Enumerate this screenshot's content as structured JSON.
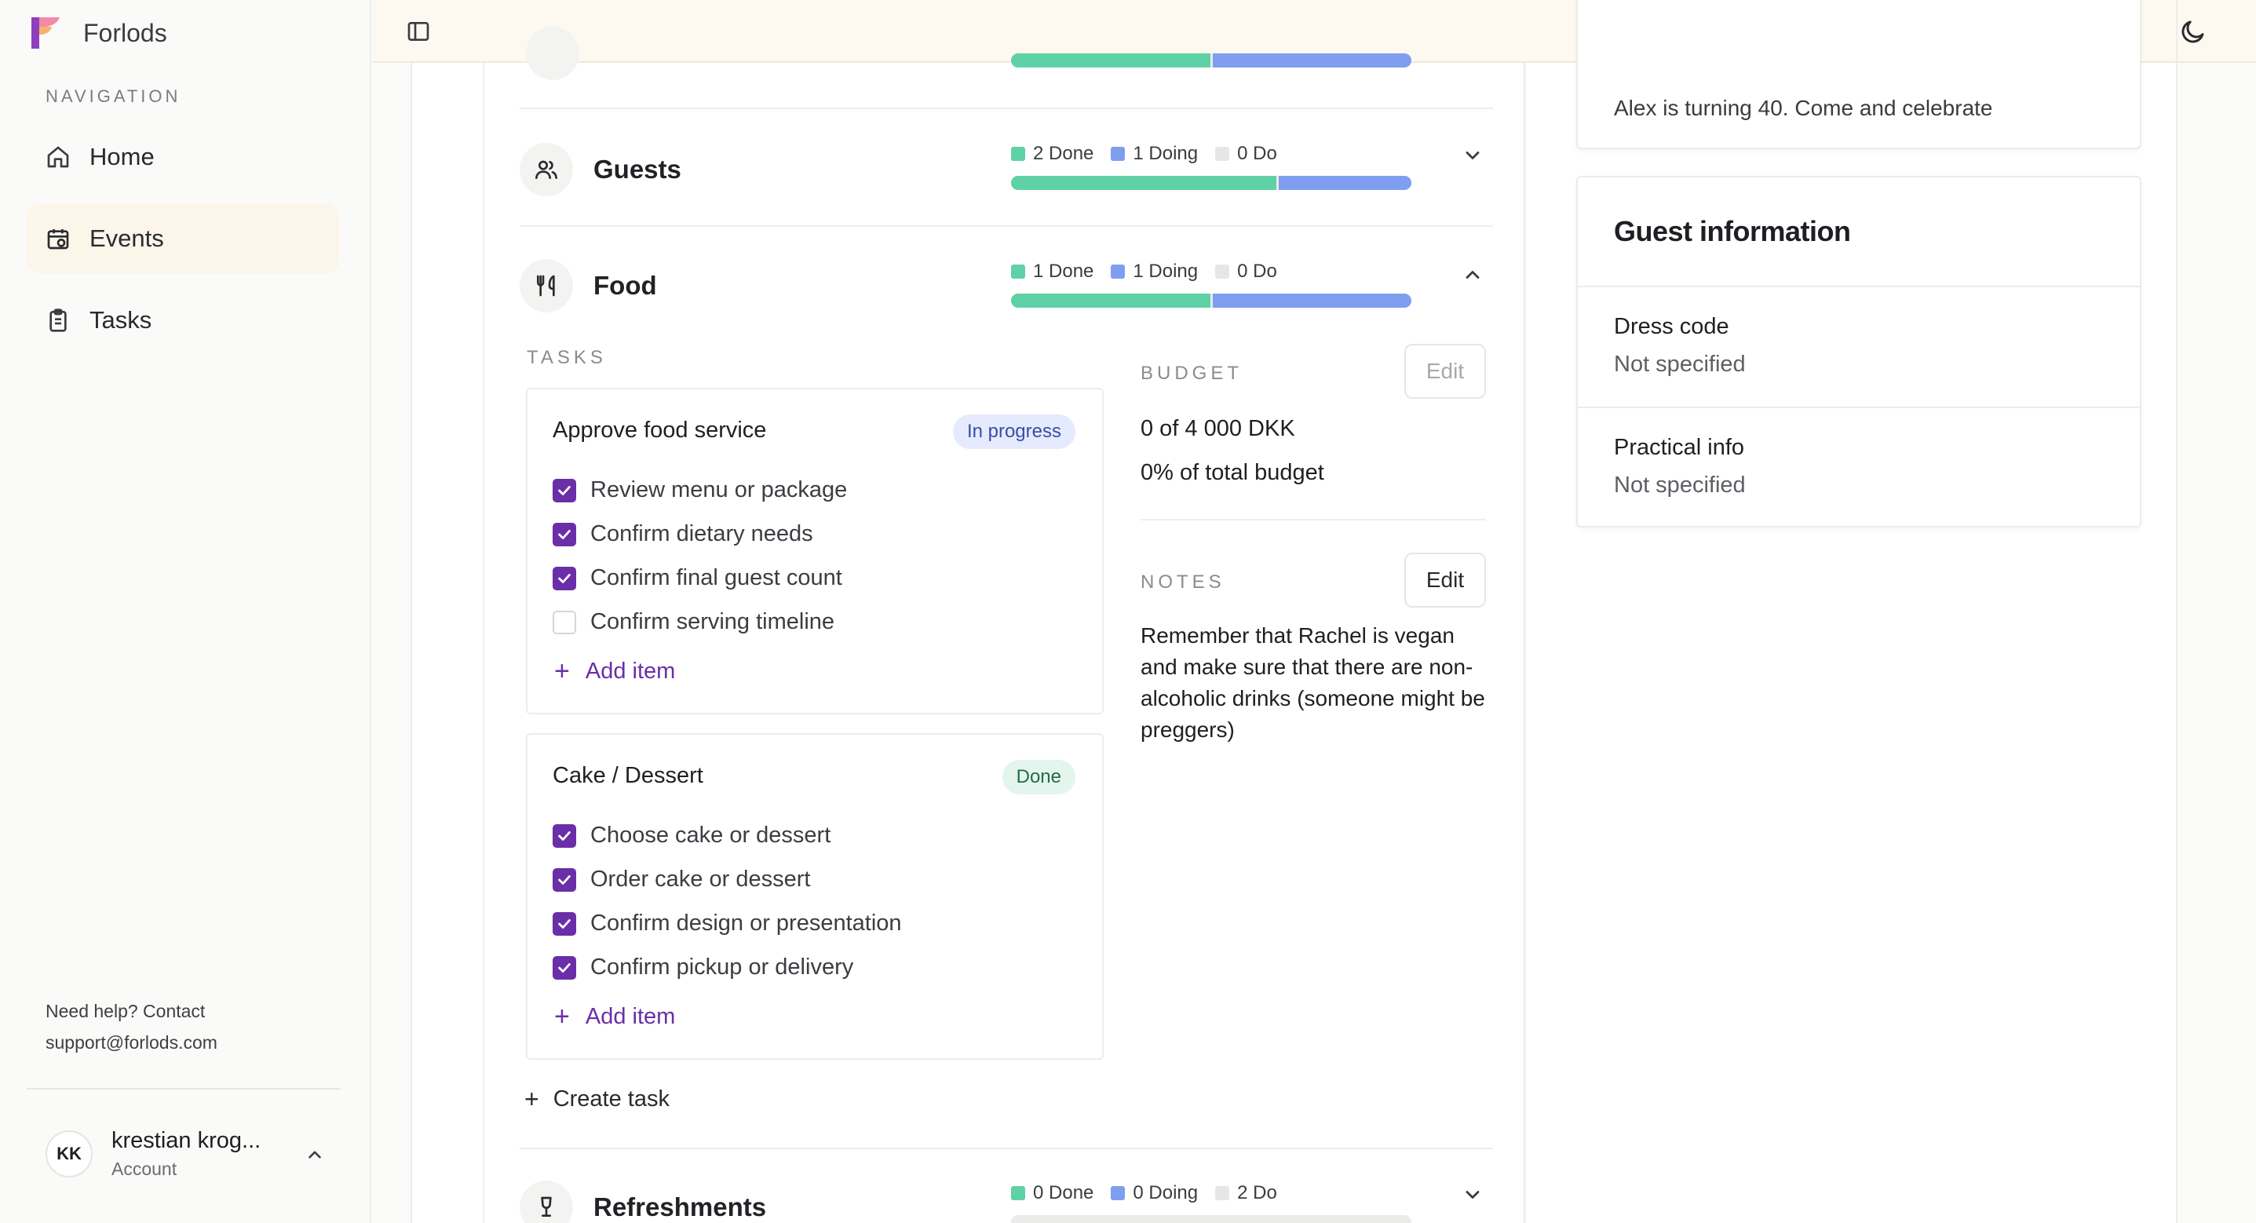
{
  "app": {
    "name": "Forlods"
  },
  "sidebar": {
    "nav_heading": "NAVIGATION",
    "items": [
      {
        "label": "Home",
        "icon": "home-icon"
      },
      {
        "label": "Events",
        "icon": "calendar-icon",
        "active": true
      },
      {
        "label": "Tasks",
        "icon": "clipboard-icon"
      }
    ],
    "help_line1": "Need help? Contact",
    "help_line2": "support@forlods.com",
    "account": {
      "initials": "KK",
      "name": "krestian krog...",
      "subtitle": "Account"
    }
  },
  "colors": {
    "done": "#5fd1a6",
    "doing": "#7f9ef0",
    "todo": "#e6e6e4",
    "accent": "#6a2ea8"
  },
  "sections": [
    {
      "title": "Guests",
      "done": 2,
      "doing": 1,
      "todo": 0,
      "done_label": "2 Done",
      "doing_label": "1 Doing",
      "todo_label": "0 Do",
      "expanded": false
    },
    {
      "title": "Food",
      "done": 1,
      "doing": 1,
      "todo": 0,
      "done_label": "1 Done",
      "doing_label": "1 Doing",
      "todo_label": "0 Do",
      "expanded": true
    },
    {
      "title": "Refreshments",
      "done": 0,
      "doing": 0,
      "todo": 2,
      "done_label": "0 Done",
      "doing_label": "0 Doing",
      "todo_label": "2 Do",
      "expanded": false
    }
  ],
  "food": {
    "tasks_heading": "TASKS",
    "tasks": [
      {
        "title": "Approve food service",
        "status": "In progress",
        "items": [
          {
            "label": "Review menu or package",
            "checked": true
          },
          {
            "label": "Confirm dietary needs",
            "checked": true
          },
          {
            "label": "Confirm final guest count",
            "checked": true
          },
          {
            "label": "Confirm serving timeline",
            "checked": false
          }
        ],
        "add_item_label": "Add item"
      },
      {
        "title": "Cake / Dessert",
        "status": "Done",
        "items": [
          {
            "label": "Choose cake or dessert",
            "checked": true
          },
          {
            "label": "Order cake or dessert",
            "checked": true
          },
          {
            "label": "Confirm design or presentation",
            "checked": true
          },
          {
            "label": "Confirm pickup or delivery",
            "checked": true
          }
        ],
        "add_item_label": "Add item"
      }
    ],
    "create_task_label": "Create task",
    "budget": {
      "heading": "BUDGET",
      "edit_label": "Edit",
      "amount": "0 of 4 000 DKK",
      "percent": "0% of total budget"
    },
    "notes": {
      "heading": "NOTES",
      "edit_label": "Edit",
      "text": "Remember that Rachel is vegan and make sure that there are non-alcoholic drinks (someone might be preggers)"
    }
  },
  "right_panel": {
    "description": "Alex is turning 40. Come and celebrate",
    "guest_info": {
      "title": "Guest information",
      "dress_code_label": "Dress code",
      "dress_code_value": "Not specified",
      "practical_label": "Practical info",
      "practical_value": "Not specified"
    }
  }
}
